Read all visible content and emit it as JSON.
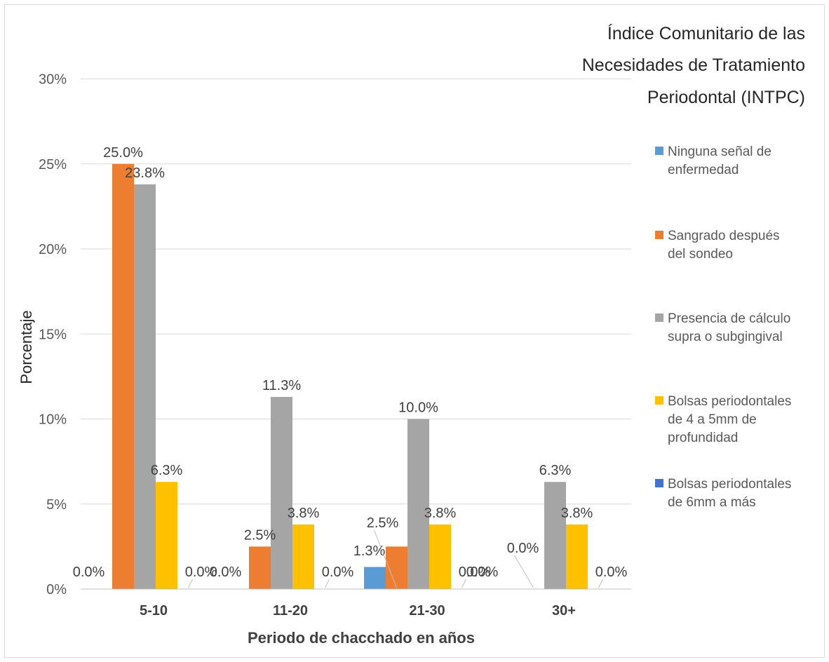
{
  "chart_data": {
    "type": "bar",
    "title": [
      "Índice Comunitario de las",
      "Necesidades de Tratamiento",
      "Periodontal (INTPC)"
    ],
    "xlabel": "Periodo de chacchado en años",
    "ylabel": "Porcentaje",
    "ylim": [
      0,
      30
    ],
    "yticks": [
      0,
      5,
      10,
      15,
      20,
      25,
      30
    ],
    "ytick_labels": [
      "0%",
      "5%",
      "10%",
      "15%",
      "20%",
      "25%",
      "30%"
    ],
    "grid": true,
    "legend_position": "right",
    "categories": [
      "5-10",
      "11-20",
      "21-30",
      "30+"
    ],
    "series": [
      {
        "name": "Ninguna señal de enfermedad",
        "legend_lines": [
          "Ninguna señal de",
          "enfermedad"
        ],
        "color": "#5b9bd5",
        "values": [
          0.0,
          0.0,
          1.3,
          0.0
        ],
        "labels": [
          "0.0%",
          "0.0%",
          "1.3%",
          "0.0%"
        ]
      },
      {
        "name": "Sangrado después del sondeo",
        "legend_lines": [
          "Sangrado después",
          "del sondeo"
        ],
        "color": "#ed7d31",
        "values": [
          25.0,
          2.5,
          2.5,
          0.0
        ],
        "labels": [
          "25.0%",
          "2.5%",
          "2.5%",
          "0.0%"
        ]
      },
      {
        "name": "Presencia de cálculo supra o subgingival",
        "legend_lines": [
          "Presencia de cálculo",
          "supra o subgingival"
        ],
        "color": "#a5a5a5",
        "values": [
          23.8,
          11.3,
          10.0,
          6.3
        ],
        "labels": [
          "23.8%",
          "11.3%",
          "10.0%",
          "6.3%"
        ]
      },
      {
        "name": "Bolsas periodontales de 4 a 5mm de profundidad",
        "legend_lines": [
          "Bolsas periodontales",
          "de 4 a 5mm de",
          "profundidad"
        ],
        "color": "#ffc000",
        "values": [
          6.3,
          3.8,
          3.8,
          3.8
        ],
        "labels": [
          "6.3%",
          "3.8%",
          "3.8%",
          "3.8%"
        ]
      },
      {
        "name": "Bolsas periodontales de 6mm a más",
        "legend_lines": [
          "Bolsas periodontales",
          "de 6mm a más"
        ],
        "color": "#4472c4",
        "values": [
          0.0,
          0.0,
          0.0,
          0.0
        ],
        "labels": [
          "0.0%",
          "0.0%",
          "0.0%",
          "0.0%"
        ]
      }
    ]
  }
}
